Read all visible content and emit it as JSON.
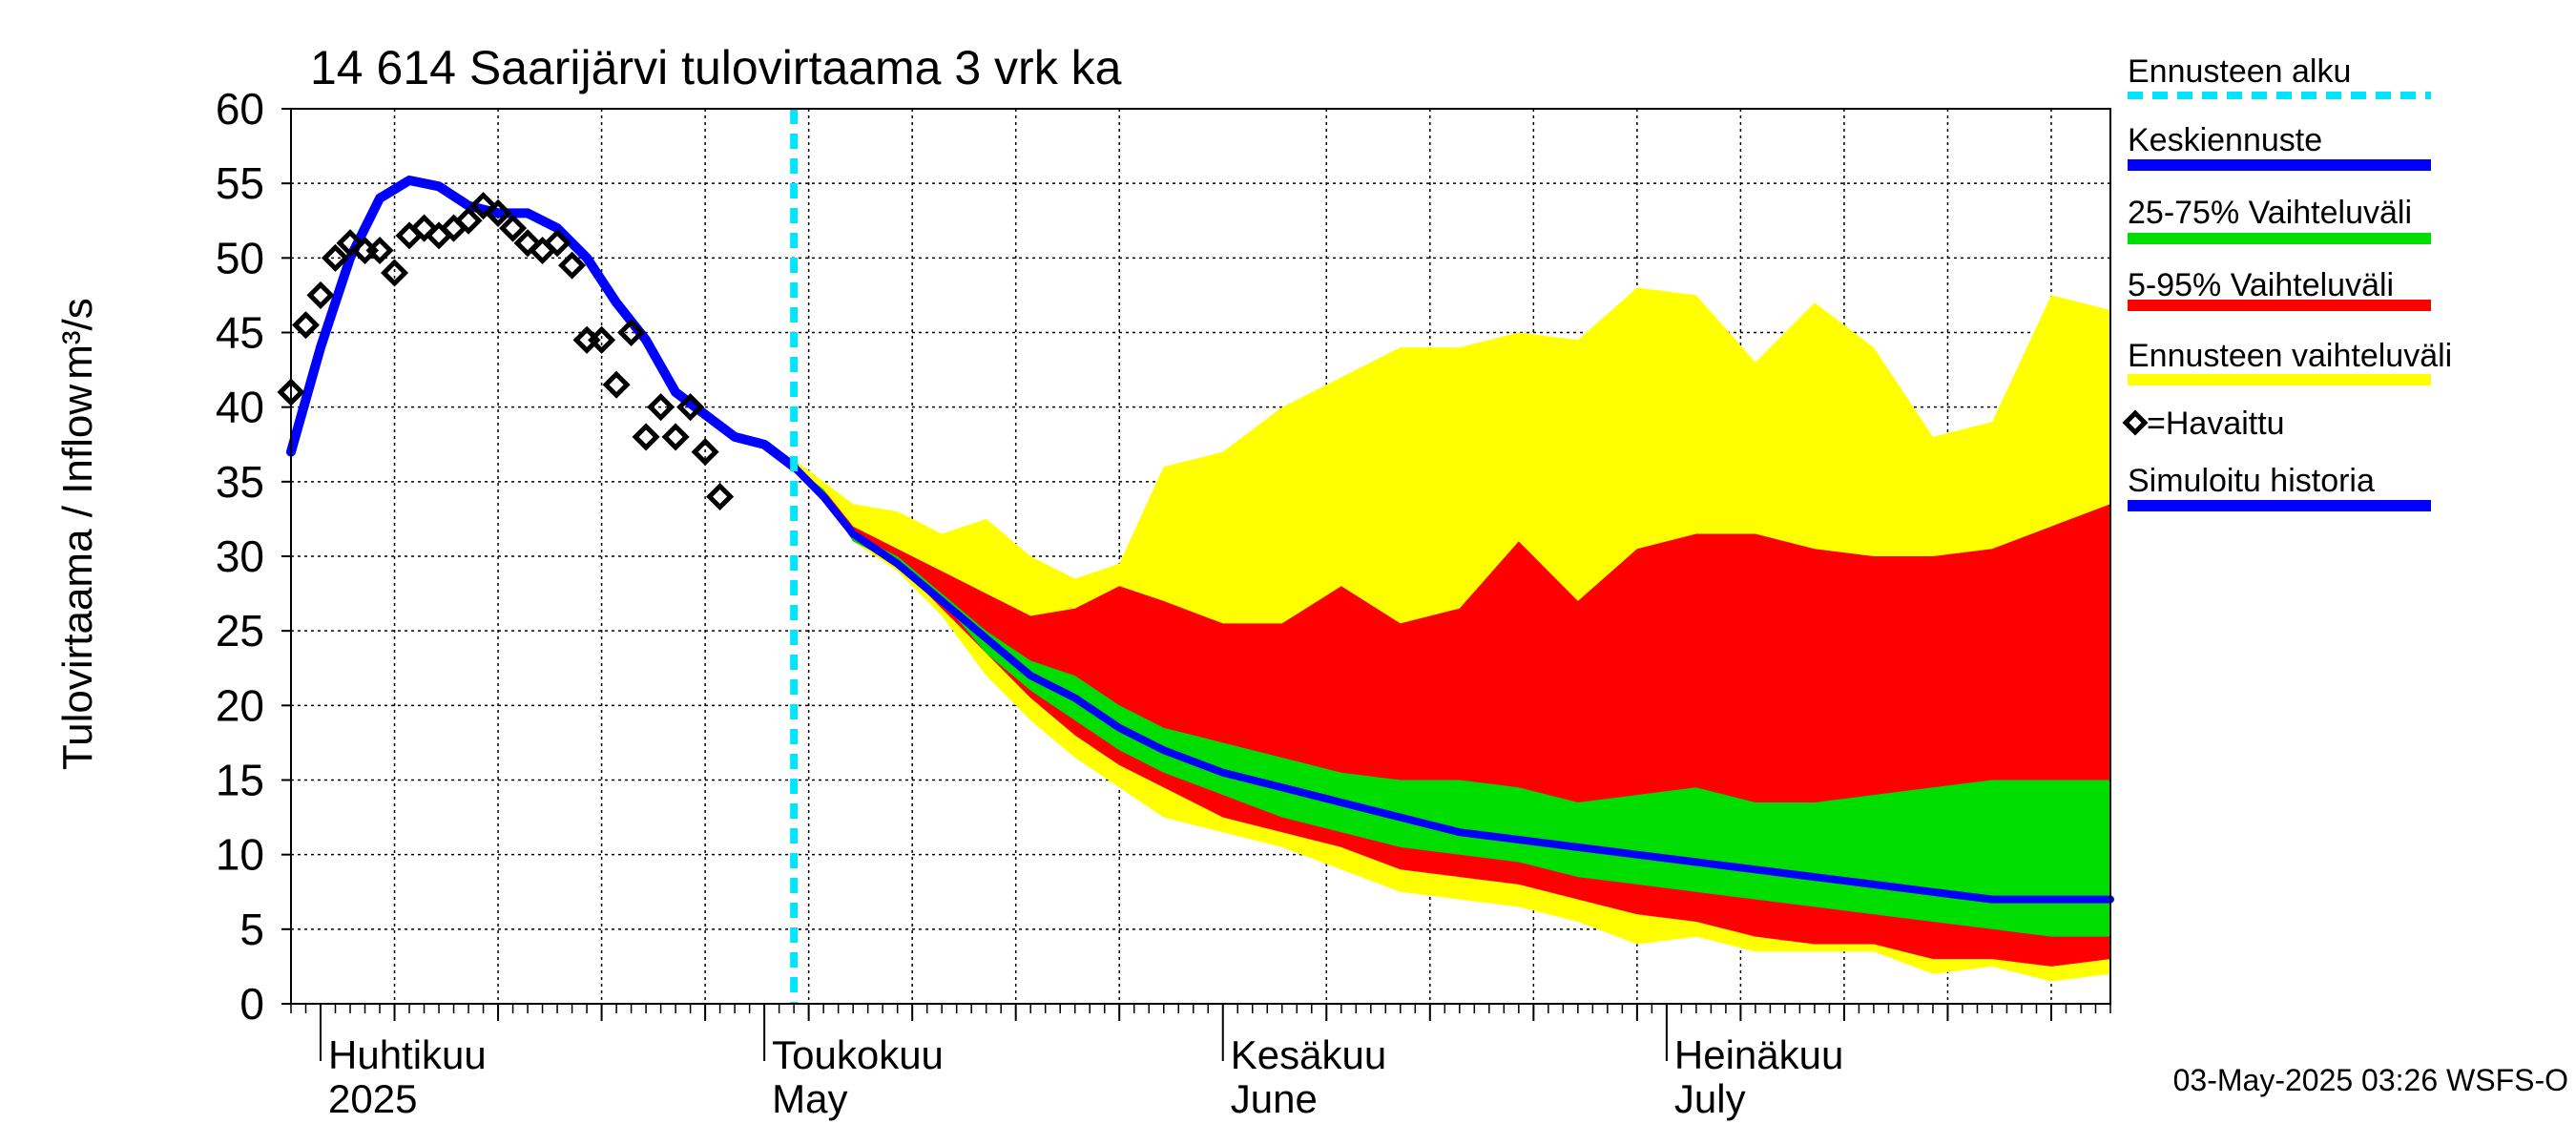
{
  "chart_data": {
    "type": "area",
    "title": "14 614 Saarijärvi tulovirtaama 3 vrk ka",
    "ylabel": "Tulovirtaama / Inflow",
    "yunit": "m³/s",
    "ylim": [
      0,
      60
    ],
    "yticks": [
      0,
      5,
      10,
      15,
      20,
      25,
      30,
      35,
      40,
      45,
      50,
      55,
      60
    ],
    "xlim": [
      "2025-03-30",
      "2025-07-31"
    ],
    "grid": true,
    "forecast_start": "2025-05-03",
    "months": [
      {
        "date": "2025-04-01",
        "fi": "Huhtikuu",
        "en": "2025"
      },
      {
        "date": "2025-05-01",
        "fi": "Toukokuu",
        "en": "May"
      },
      {
        "date": "2025-06-01",
        "fi": "Kesäkuu",
        "en": "June"
      },
      {
        "date": "2025-07-01",
        "fi": "Heinäkuu",
        "en": "July"
      }
    ],
    "week_dates": [
      "2025-04-06",
      "2025-04-13",
      "2025-04-20",
      "2025-04-27",
      "2025-05-04",
      "2025-05-11",
      "2025-05-18",
      "2025-05-25",
      "2025-06-08",
      "2025-06-15",
      "2025-06-22",
      "2025-06-29",
      "2025-07-06",
      "2025-07-13",
      "2025-07-20",
      "2025-07-27"
    ],
    "legend": [
      {
        "label": "Ennusteen alku",
        "color": "#00e5ff",
        "style": "dashed"
      },
      {
        "label": "Keskiennuste",
        "color": "#0000ff",
        "style": "line"
      },
      {
        "label": "25-75% Vaihteluväli",
        "color": "#00dd00",
        "style": "line"
      },
      {
        "label": "5-95% Vaihteluväli",
        "color": "#ff0000",
        "style": "line"
      },
      {
        "label": "Ennusteen vaihteluväli",
        "color": "#ffff00",
        "style": "line"
      },
      {
        "label": "=Havaittu",
        "color": "#000000",
        "style": "marker"
      },
      {
        "label": "Simuloitu historia",
        "color": "#0000ff",
        "style": "line"
      }
    ],
    "footer": "03-May-2025 03:26 WSFS-O",
    "series": {
      "envelope_min_max": {
        "x": [
          "2025-05-03",
          "2025-05-05",
          "2025-05-07",
          "2025-05-10",
          "2025-05-13",
          "2025-05-16",
          "2025-05-19",
          "2025-05-22",
          "2025-05-25",
          "2025-05-28",
          "2025-06-01",
          "2025-06-05",
          "2025-06-09",
          "2025-06-13",
          "2025-06-17",
          "2025-06-21",
          "2025-06-25",
          "2025-06-29",
          "2025-07-03",
          "2025-07-07",
          "2025-07-11",
          "2025-07-15",
          "2025-07-19",
          "2025-07-23",
          "2025-07-27",
          "2025-07-31"
        ],
        "upper": [
          36.5,
          35,
          33.5,
          33,
          31.5,
          32.5,
          30,
          28.5,
          29.5,
          36,
          37,
          40,
          42,
          44,
          44,
          45,
          44.5,
          48,
          47.5,
          43,
          47,
          44,
          38,
          39,
          47.5,
          46.5
        ],
        "lower": [
          36,
          34,
          31,
          29,
          26,
          22,
          19,
          16.5,
          14.5,
          12.5,
          11.5,
          10.5,
          9,
          7.5,
          7,
          6.5,
          5.5,
          4,
          4.5,
          3.5,
          3.5,
          3.5,
          2,
          2.5,
          1.5,
          2
        ]
      },
      "band_5_95": {
        "x": [
          "2025-05-03",
          "2025-05-05",
          "2025-05-07",
          "2025-05-10",
          "2025-05-13",
          "2025-05-16",
          "2025-05-19",
          "2025-05-22",
          "2025-05-25",
          "2025-05-28",
          "2025-06-01",
          "2025-06-05",
          "2025-06-09",
          "2025-06-13",
          "2025-06-17",
          "2025-06-21",
          "2025-06-25",
          "2025-06-29",
          "2025-07-03",
          "2025-07-07",
          "2025-07-11",
          "2025-07-15",
          "2025-07-19",
          "2025-07-23",
          "2025-07-27",
          "2025-07-31"
        ],
        "upper": [
          36,
          34.5,
          32,
          30.5,
          29,
          27.5,
          26,
          26.5,
          28,
          27,
          25.5,
          25.5,
          28,
          25.5,
          26.5,
          31,
          27,
          30.5,
          31.5,
          31.5,
          30.5,
          30,
          30,
          30.5,
          32,
          33.5
        ],
        "lower": [
          36,
          34,
          31,
          29.5,
          26.5,
          23.5,
          20.5,
          18,
          16,
          14.5,
          12.5,
          11.5,
          10.5,
          9,
          8.5,
          8,
          7,
          6,
          5.5,
          4.5,
          4,
          4,
          3,
          3,
          2.5,
          3
        ]
      },
      "band_25_75": {
        "x": [
          "2025-05-03",
          "2025-05-05",
          "2025-05-07",
          "2025-05-10",
          "2025-05-13",
          "2025-05-16",
          "2025-05-19",
          "2025-05-22",
          "2025-05-25",
          "2025-05-28",
          "2025-06-01",
          "2025-06-05",
          "2025-06-09",
          "2025-06-13",
          "2025-06-17",
          "2025-06-21",
          "2025-06-25",
          "2025-06-29",
          "2025-07-03",
          "2025-07-07",
          "2025-07-11",
          "2025-07-15",
          "2025-07-19",
          "2025-07-23",
          "2025-07-27",
          "2025-07-31"
        ],
        "upper": [
          36,
          34.5,
          31.5,
          30,
          27.5,
          25,
          23,
          22,
          20,
          18.5,
          17.5,
          16.5,
          15.5,
          15,
          15,
          14.5,
          13.5,
          14,
          14.5,
          13.5,
          13.5,
          14,
          14.5,
          15,
          15,
          15
        ],
        "lower": [
          36,
          34,
          31,
          29.5,
          27,
          23.5,
          21,
          19,
          17,
          15.5,
          14,
          12.5,
          11.5,
          10.5,
          10,
          9.5,
          8.5,
          8,
          7.5,
          7,
          6.5,
          6,
          5.5,
          5,
          4.5,
          4.5
        ]
      },
      "median": {
        "x": [
          "2025-05-03",
          "2025-05-05",
          "2025-05-07",
          "2025-05-10",
          "2025-05-13",
          "2025-05-16",
          "2025-05-19",
          "2025-05-22",
          "2025-05-25",
          "2025-05-28",
          "2025-06-01",
          "2025-06-05",
          "2025-06-09",
          "2025-06-13",
          "2025-06-17",
          "2025-06-21",
          "2025-06-25",
          "2025-06-29",
          "2025-07-03",
          "2025-07-07",
          "2025-07-11",
          "2025-07-15",
          "2025-07-19",
          "2025-07-23",
          "2025-07-25",
          "2025-07-27",
          "2025-07-29",
          "2025-07-31"
        ],
        "y": [
          36,
          34,
          31.5,
          29.5,
          27,
          24.5,
          22,
          20.5,
          18.5,
          17,
          15.5,
          14.5,
          13.5,
          12.5,
          11.5,
          11,
          10.5,
          10,
          9.5,
          9,
          8.5,
          8,
          7.5,
          7,
          7,
          7,
          7,
          7
        ]
      },
      "simulated_history": {
        "x": [
          "2025-03-30",
          "2025-04-01",
          "2025-04-03",
          "2025-04-05",
          "2025-04-07",
          "2025-04-09",
          "2025-04-11",
          "2025-04-13",
          "2025-04-15",
          "2025-04-17",
          "2025-04-19",
          "2025-04-21",
          "2025-04-23",
          "2025-04-25",
          "2025-04-27",
          "2025-04-29",
          "2025-05-01",
          "2025-05-03"
        ],
        "y": [
          37,
          44,
          50,
          54,
          55.2,
          54.8,
          53.5,
          53,
          53,
          52,
          50,
          47,
          44.5,
          41,
          39.5,
          38,
          37.5,
          36
        ]
      },
      "observed": {
        "x": [
          "2025-03-30",
          "2025-03-31",
          "2025-04-01",
          "2025-04-02",
          "2025-04-03",
          "2025-04-04",
          "2025-04-05",
          "2025-04-06",
          "2025-04-07",
          "2025-04-08",
          "2025-04-09",
          "2025-04-10",
          "2025-04-11",
          "2025-04-12",
          "2025-04-13",
          "2025-04-14",
          "2025-04-15",
          "2025-04-16",
          "2025-04-17",
          "2025-04-18",
          "2025-04-19",
          "2025-04-20",
          "2025-04-21",
          "2025-04-22",
          "2025-04-23",
          "2025-04-24",
          "2025-04-25",
          "2025-04-26",
          "2025-04-27",
          "2025-04-28",
          "2025-04-29",
          "2025-04-30"
        ],
        "y": [
          41,
          45.5,
          47.5,
          50,
          51,
          50.5,
          50.5,
          49,
          51.5,
          52,
          51.5,
          52,
          52.5,
          53.5,
          53,
          52,
          51,
          50.5,
          51,
          49.5,
          44.5,
          44.5,
          41.5,
          45,
          38,
          40,
          38,
          40,
          37,
          34,
          null,
          null
        ]
      }
    }
  }
}
